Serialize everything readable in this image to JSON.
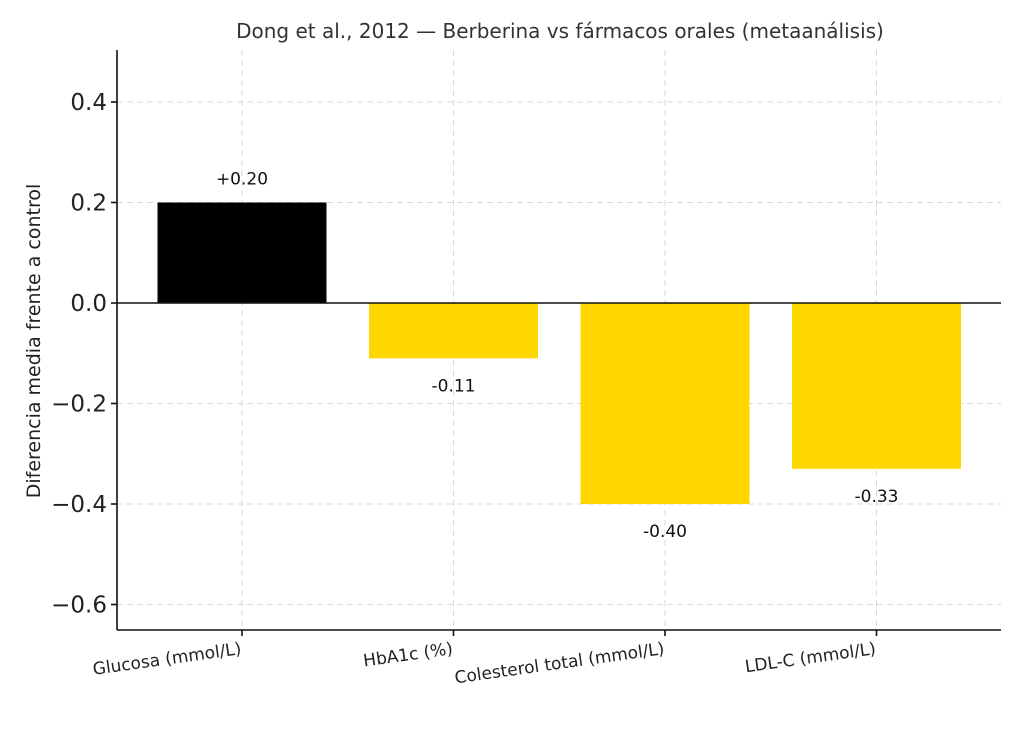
{
  "chart_data": {
    "type": "bar",
    "title": "Dong et al., 2012 — Berberina vs fármacos orales (metaanálisis)",
    "xlabel": "",
    "ylabel": "Diferencia media frente a control",
    "ylim": [
      -0.65,
      0.5
    ],
    "yticks": [
      0.4,
      0.2,
      0.0,
      -0.2,
      -0.4,
      -0.6
    ],
    "ytick_labels": [
      "0.4",
      "0.2",
      "0.0",
      "−0.2",
      "−0.4",
      "−0.6"
    ],
    "categories": [
      "Glucosa (mmol/L)",
      "HbA1c (%)",
      "Colesterol total (mmol/L)",
      "LDL-C (mmol/L)"
    ],
    "values": [
      0.2,
      -0.11,
      -0.4,
      -0.33
    ],
    "data_labels": [
      "+0.20",
      "-0.11",
      "-0.40",
      "-0.33"
    ],
    "colors": [
      "#000000",
      "#FFD700",
      "#FFD700",
      "#FFD700"
    ],
    "grid": true
  }
}
